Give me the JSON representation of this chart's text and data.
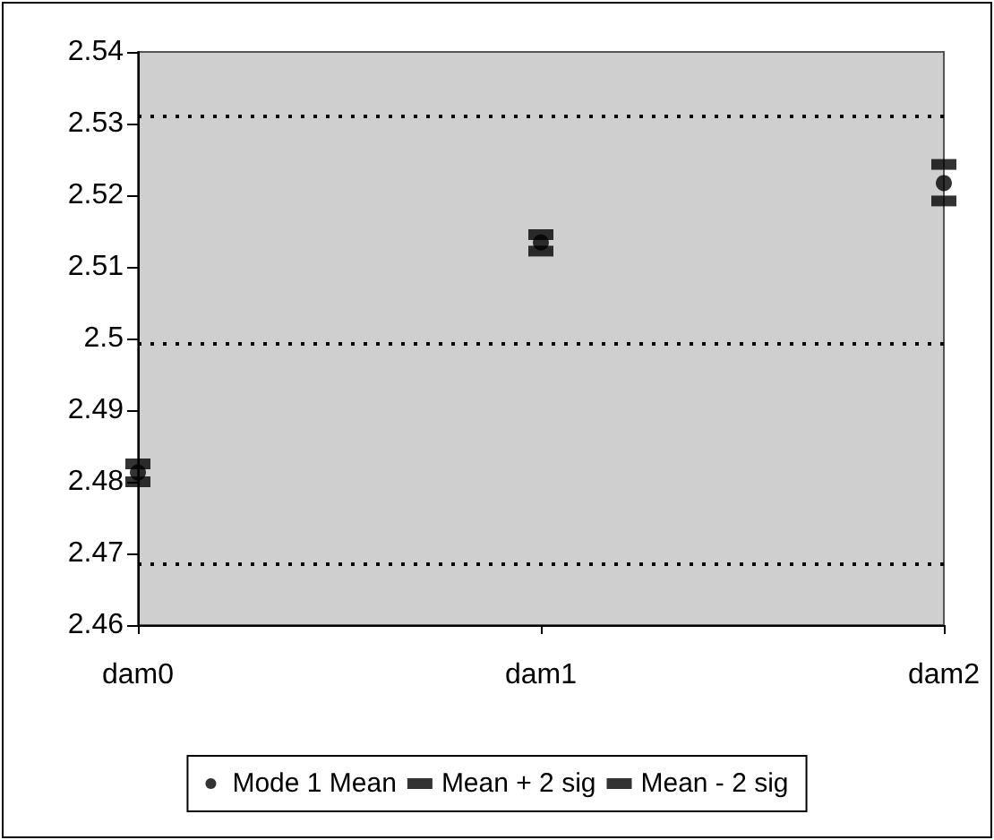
{
  "chart_data": {
    "type": "scatter",
    "categories": [
      "dam0",
      "dam1",
      "dam2"
    ],
    "series": [
      {
        "name": "Mode 1 Mean",
        "color": "#000000",
        "marker": "circle",
        "values": [
          2.4813,
          2.5134,
          2.5217
        ]
      },
      {
        "name": "Mean + 2 sig",
        "color": "#000000",
        "marker": "square",
        "values": [
          2.4825,
          2.5145,
          2.5243
        ]
      },
      {
        "name": "Mean - 2 sig",
        "color": "#000000",
        "marker": "square",
        "values": [
          2.48,
          2.5122,
          2.5192
        ]
      }
    ],
    "ylim": [
      2.46,
      2.54
    ],
    "yticks": [
      2.46,
      2.47,
      2.48,
      2.49,
      2.5,
      2.51,
      2.52,
      2.53,
      2.54
    ],
    "ref_lines": [
      {
        "axis": "y",
        "value": 2.531,
        "color": "#000000",
        "line_style": "dotted"
      },
      {
        "axis": "y",
        "value": 2.4993,
        "color": "#000000",
        "line_style": "dotted"
      },
      {
        "axis": "y",
        "value": 2.4686,
        "color": "#000000",
        "line_style": "dotted"
      }
    ],
    "grid": false,
    "legend": "bottom"
  }
}
